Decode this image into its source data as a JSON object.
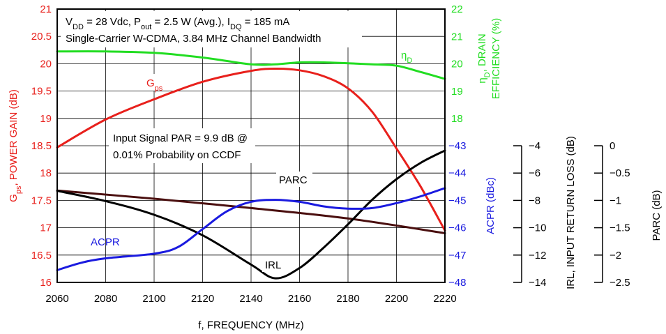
{
  "chart_data": {
    "type": "line",
    "xlabel": "f, FREQUENCY (MHz)",
    "xlim": [
      2060,
      2220
    ],
    "xticks": [
      "2060",
      "2080",
      "2100",
      "2120",
      "2140",
      "2160",
      "2180",
      "2200",
      "2220"
    ],
    "conditions_line1": "V<sub>DD</sub> = 28 Vdc, P<sub>out</sub> = 2.5 W (Avg.), I<sub>DQ</sub> = 185 mA",
    "conditions_line1_plain": "VDD = 28 Vdc, Pout = 2.5 W (Avg.), IDQ = 185 mA",
    "conditions_line2": "Single-Carrier W-CDMA, 3.84 MHz Channel Bandwidth",
    "par_note_line1": "Input Signal PAR = 9.9 dB @",
    "par_note_line2": "0.01% Probability on CCDF",
    "axes": {
      "gps": {
        "label_main": "G",
        "label_sub": "ps",
        "label_rest": ", POWER GAIN (dB)",
        "ylim": [
          16,
          21
        ],
        "ticks": [
          "16",
          "16.5",
          "17",
          "17.5",
          "18",
          "18.5",
          "19",
          "19.5",
          "20",
          "20.5",
          "21"
        ],
        "color": "#e8201c"
      },
      "eff": {
        "label_line1": "η",
        "label_line1_sub": "D",
        "label_line1_rest": ", DRAIN",
        "label_line2": "EFFICIENCY (%)",
        "ylim": [
          18,
          22
        ],
        "ticks": [
          "18",
          "19",
          "20",
          "21",
          "22"
        ],
        "color": "#22dd22"
      },
      "acpr": {
        "label": "ACPR (dBc)",
        "ylim": [
          -48,
          -43
        ],
        "ticks": [
          "−48",
          "−47",
          "−46",
          "−45",
          "−44",
          "−43"
        ],
        "color": "#1a1adf"
      },
      "irl": {
        "label": "IRL, INPUT RETURN LOSS (dB)",
        "ylim": [
          -14,
          -4
        ],
        "ticks": [
          "−14",
          "−12",
          "−10",
          "−8",
          "−6",
          "−4"
        ],
        "color": "#000000"
      },
      "parc": {
        "label": "PARC (dB)",
        "ylim": [
          -2.5,
          0
        ],
        "ticks": [
          "−2.5",
          "−2",
          "−1.5",
          "−1",
          "−0.5",
          "0"
        ],
        "color": "#4a0f0f"
      }
    },
    "series": [
      {
        "name": "Gps",
        "label_main": "G",
        "label_sub": "ps",
        "axis": "gps",
        "color": "#e8201c",
        "x": [
          2060,
          2080,
          2100,
          2120,
          2140,
          2150,
          2160,
          2170,
          2180,
          2190,
          2200,
          2210,
          2220
        ],
        "y": [
          18.47,
          18.98,
          19.35,
          19.67,
          19.87,
          19.91,
          19.88,
          19.77,
          19.55,
          19.12,
          18.45,
          17.75,
          16.95
        ]
      },
      {
        "name": "ηD",
        "label_main": "η",
        "label_sub": "D",
        "axis": "eff",
        "color": "#22dd22",
        "x": [
          2060,
          2080,
          2100,
          2120,
          2140,
          2150,
          2160,
          2170,
          2180,
          2190,
          2200,
          2210,
          2220
        ],
        "y": [
          20.45,
          20.45,
          20.4,
          20.23,
          19.98,
          19.98,
          20.05,
          20.05,
          20.02,
          19.98,
          19.93,
          19.7,
          19.45
        ]
      },
      {
        "name": "PARC",
        "axis": "parc",
        "color": "#4a0f0f",
        "x": [
          2060,
          2100,
          2140,
          2180,
          2220
        ],
        "y": [
          -0.82,
          -0.97,
          -1.14,
          -1.33,
          -1.6
        ]
      },
      {
        "name": "IRL",
        "axis": "irl",
        "color": "#000000",
        "x": [
          2060,
          2080,
          2100,
          2120,
          2140,
          2150,
          2160,
          2170,
          2180,
          2190,
          2200,
          2210,
          2220
        ],
        "y": [
          -7.3,
          -8.05,
          -9.05,
          -10.55,
          -12.7,
          -13.7,
          -12.95,
          -11.45,
          -9.75,
          -7.95,
          -6.45,
          -5.25,
          -4.35
        ]
      },
      {
        "name": "ACPR",
        "axis": "acpr",
        "color": "#1a1adf",
        "x": [
          2060,
          2070,
          2080,
          2100,
          2110,
          2120,
          2130,
          2140,
          2150,
          2160,
          2170,
          2180,
          2190,
          2200,
          2210,
          2220
        ],
        "y": [
          -47.55,
          -47.28,
          -47.12,
          -46.95,
          -46.7,
          -46.05,
          -45.4,
          -45.05,
          -44.98,
          -45.05,
          -45.22,
          -45.3,
          -45.28,
          -45.1,
          -44.85,
          -44.55
        ]
      }
    ],
    "series_labels": {
      "gps": "G",
      "eff": "η",
      "parc": "PARC",
      "irl": "IRL",
      "acpr": "ACPR"
    }
  }
}
